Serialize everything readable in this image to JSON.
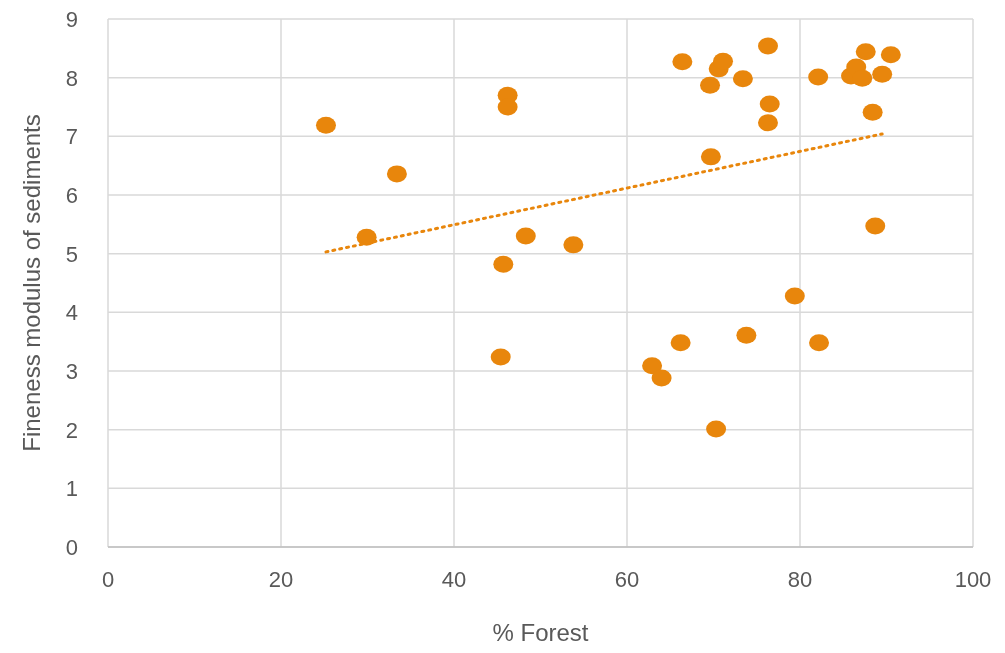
{
  "chart_data": {
    "type": "scatter",
    "xlabel": "% Forest",
    "ylabel": "Fineness modulus of sediments",
    "xlim": [
      0,
      100
    ],
    "xticks": [
      0,
      20,
      40,
      60,
      80,
      100
    ],
    "ylim": [
      0,
      9
    ],
    "yticks": [
      0,
      1,
      2,
      3,
      4,
      5,
      6,
      7,
      8,
      9
    ],
    "grid": true,
    "marker": "circle",
    "series": [
      {
        "color": "#e8860c",
        "x": [
          25.2,
          29.9,
          33.4,
          46.2,
          46.2,
          45.7,
          45.4,
          48.3,
          53.8,
          66.4,
          69.6,
          70.6,
          71.1,
          73.4,
          76.3,
          76.5,
          76.3,
          69.7,
          82.1,
          85.9,
          86.5,
          87.2,
          87.6,
          89.5,
          90.5,
          88.4,
          88.7,
          79.4,
          82.2,
          73.8,
          66.2,
          62.9,
          64.0,
          70.3
        ],
        "values": [
          7.19,
          5.28,
          6.36,
          7.7,
          7.5,
          4.82,
          3.24,
          5.3,
          5.15,
          8.27,
          7.87,
          8.15,
          8.28,
          7.98,
          8.54,
          7.55,
          7.23,
          6.65,
          8.01,
          8.03,
          8.18,
          7.99,
          8.44,
          8.06,
          8.39,
          7.41,
          5.47,
          4.28,
          3.48,
          3.61,
          3.48,
          3.09,
          2.88,
          2.01
        ]
      },
      {
        "type": "line",
        "color": "#e8860c",
        "line_style": "dotted",
        "marker": "none",
        "x": [
          25.2,
          89.5
        ],
        "values": [
          5.03,
          7.04
        ]
      }
    ]
  }
}
